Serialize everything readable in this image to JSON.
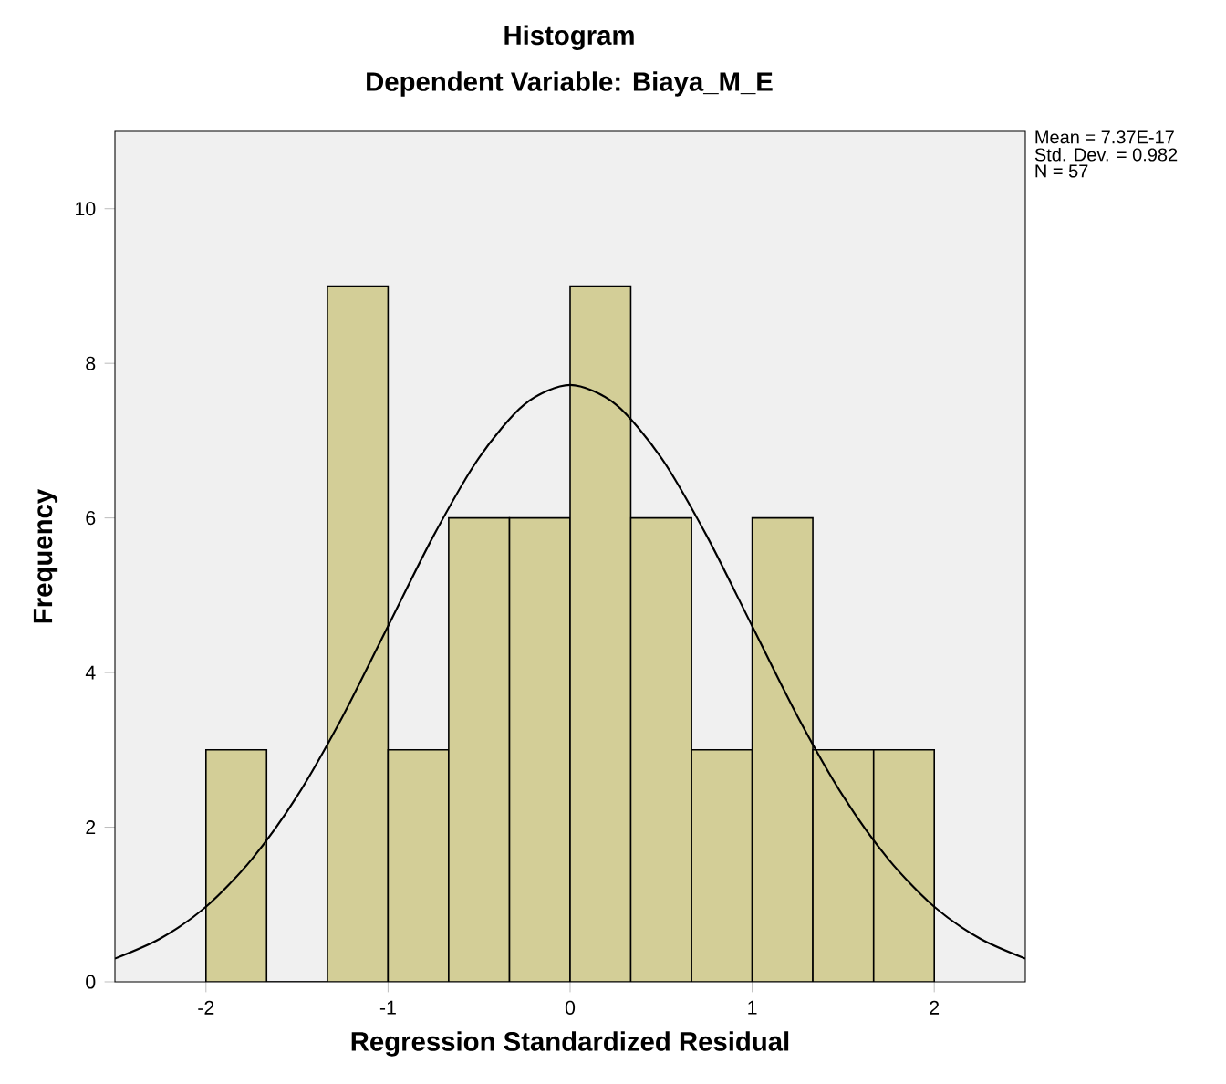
{
  "chart_data": {
    "type": "histogram",
    "title": "Histogram",
    "subtitle": "Dependent Variable: Biaya_M_E",
    "xlabel": "Regression Standardized Residual",
    "ylabel": "Frequency",
    "bins": [
      -2,
      -1.667,
      -1.333,
      -1,
      -0.667,
      -0.333,
      0,
      0.333,
      0.667,
      1,
      1.333,
      1.667,
      2
    ],
    "values": [
      3,
      0,
      9,
      3,
      6,
      6,
      9,
      6,
      3,
      6,
      3,
      3
    ],
    "color": "#d3ce97",
    "series": [
      {
        "type": "line",
        "color": "#000000",
        "x": [
          -2.5,
          -2.25,
          -2,
          -1.75,
          -1.5,
          -1.25,
          -1,
          -0.75,
          -0.5,
          -0.25,
          0,
          0.25,
          0.5,
          0.75,
          1,
          1.25,
          1.5,
          1.75,
          2,
          2.25,
          2.5
        ],
        "values": [
          0.3,
          0.56,
          0.97,
          1.58,
          2.4,
          3.43,
          4.6,
          5.77,
          6.78,
          7.47,
          7.72,
          7.47,
          6.78,
          5.77,
          4.6,
          3.43,
          2.4,
          1.58,
          0.97,
          0.56,
          0.3
        ]
      }
    ],
    "xlim": [
      -2.5,
      2.5
    ],
    "ylim": [
      0,
      11
    ],
    "xticks": [
      -2,
      -1,
      0,
      1,
      2
    ],
    "yticks": [
      0,
      2,
      4,
      6,
      8,
      10
    ],
    "annotations": [
      "Mean = 7.37E-17",
      "Std. Dev. = 0.982",
      "N = 57"
    ]
  }
}
